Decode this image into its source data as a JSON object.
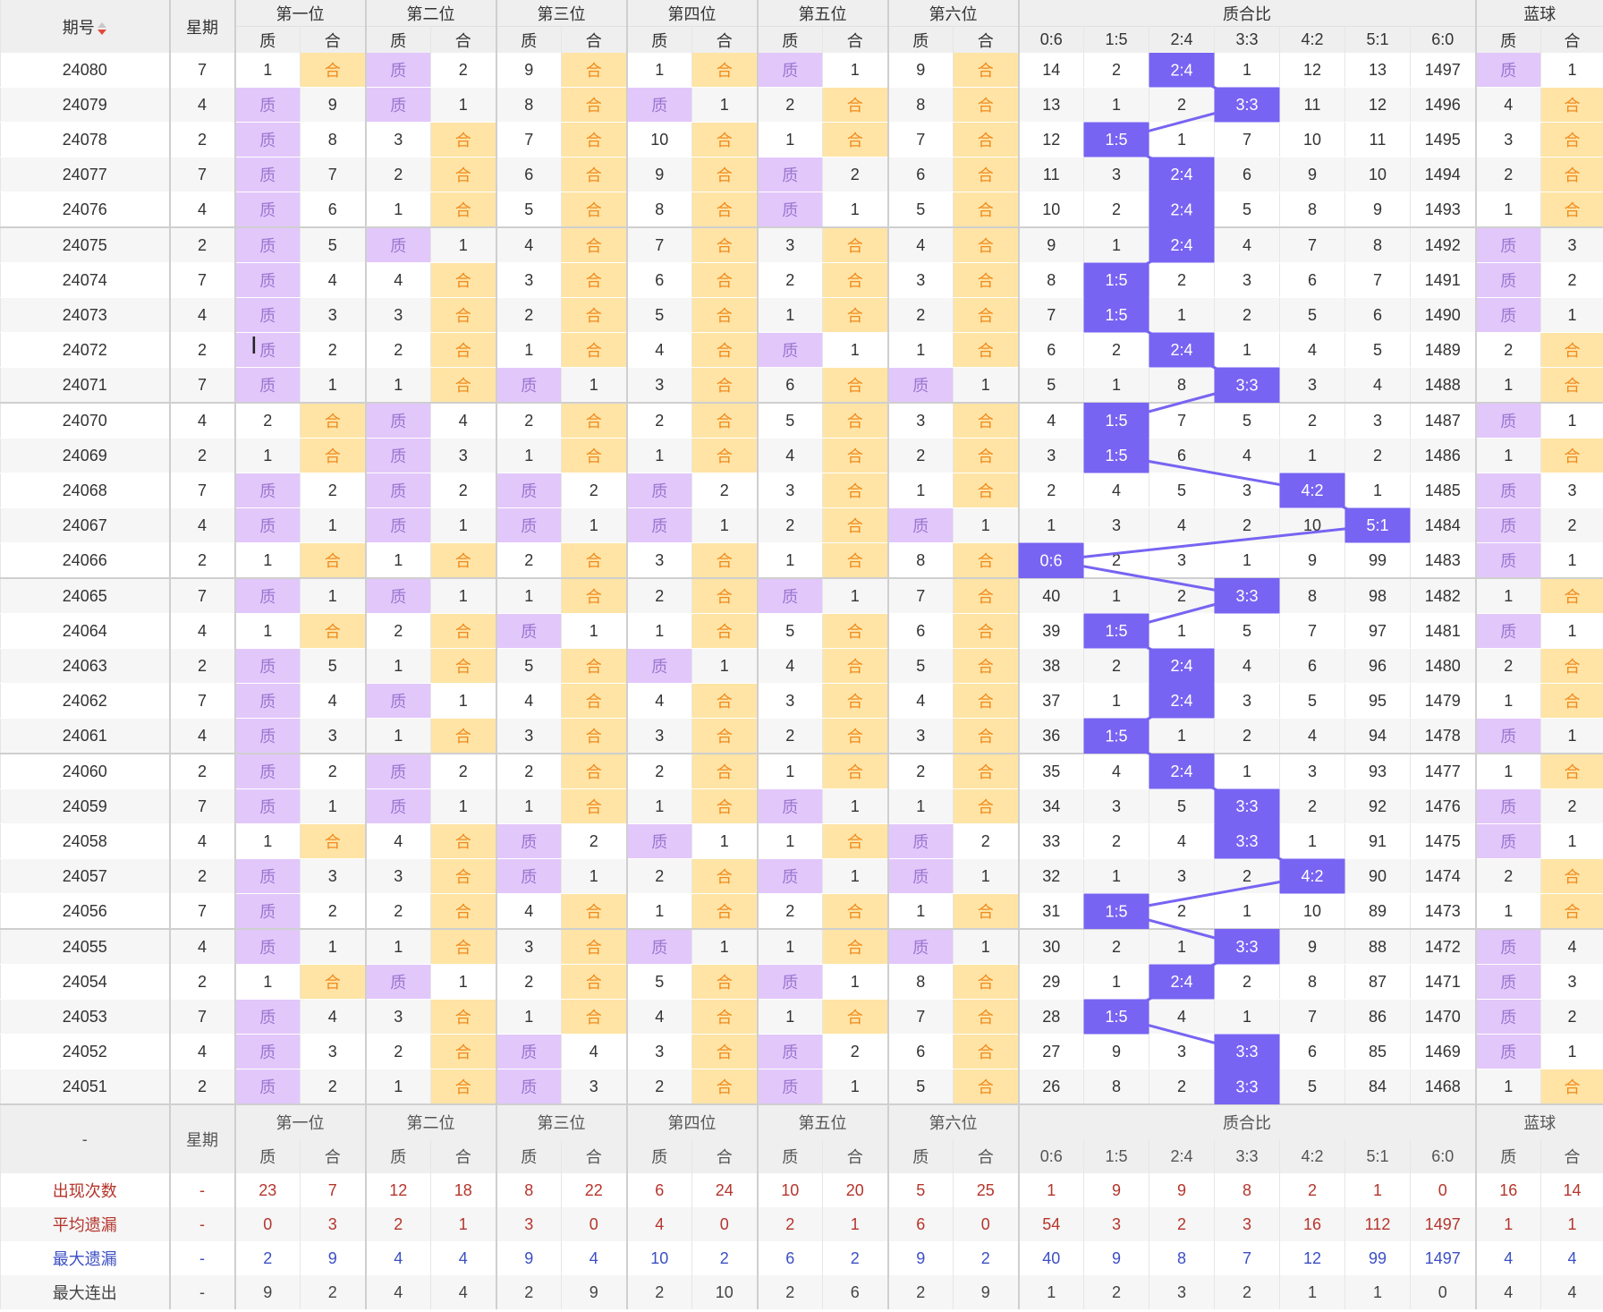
{
  "header": {
    "period_label": "期号",
    "week_label": "星期",
    "groups": [
      "第一位",
      "第二位",
      "第三位",
      "第四位",
      "第五位",
      "第六位",
      "质合比",
      "蓝球"
    ],
    "zhi": "质",
    "he": "合",
    "ratios": [
      "0:6",
      "1:5",
      "2:4",
      "3:3",
      "4:2",
      "5:1",
      "6:0"
    ]
  },
  "rows": [
    {
      "p": "24080",
      "w": "7",
      "pos": [
        [
          "1",
          "合"
        ],
        [
          "质",
          "2"
        ],
        [
          "9",
          "合"
        ],
        [
          "1",
          "合"
        ],
        [
          "质",
          "1"
        ],
        [
          "9",
          "合"
        ]
      ],
      "ratio": [
        "14",
        "2",
        "2:4",
        "1",
        "12",
        "13",
        "1497"
      ],
      "blue": [
        "质",
        "1"
      ]
    },
    {
      "p": "24079",
      "w": "4",
      "pos": [
        [
          "质",
          "9"
        ],
        [
          "质",
          "1"
        ],
        [
          "8",
          "合"
        ],
        [
          "质",
          "1"
        ],
        [
          "2",
          "合"
        ],
        [
          "8",
          "合"
        ]
      ],
      "ratio": [
        "13",
        "1",
        "2",
        "3:3",
        "11",
        "12",
        "1496"
      ],
      "blue": [
        "4",
        "合"
      ]
    },
    {
      "p": "24078",
      "w": "2",
      "pos": [
        [
          "质",
          "8"
        ],
        [
          "3",
          "合"
        ],
        [
          "7",
          "合"
        ],
        [
          "10",
          "合"
        ],
        [
          "1",
          "合"
        ],
        [
          "7",
          "合"
        ]
      ],
      "ratio": [
        "12",
        "1:5",
        "1",
        "7",
        "10",
        "11",
        "1495"
      ],
      "blue": [
        "3",
        "合"
      ]
    },
    {
      "p": "24077",
      "w": "7",
      "pos": [
        [
          "质",
          "7"
        ],
        [
          "2",
          "合"
        ],
        [
          "6",
          "合"
        ],
        [
          "9",
          "合"
        ],
        [
          "质",
          "2"
        ],
        [
          "6",
          "合"
        ]
      ],
      "ratio": [
        "11",
        "3",
        "2:4",
        "6",
        "9",
        "10",
        "1494"
      ],
      "blue": [
        "2",
        "合"
      ]
    },
    {
      "p": "24076",
      "w": "4",
      "pos": [
        [
          "质",
          "6"
        ],
        [
          "1",
          "合"
        ],
        [
          "5",
          "合"
        ],
        [
          "8",
          "合"
        ],
        [
          "质",
          "1"
        ],
        [
          "5",
          "合"
        ]
      ],
      "ratio": [
        "10",
        "2",
        "2:4",
        "5",
        "8",
        "9",
        "1493"
      ],
      "blue": [
        "1",
        "合"
      ]
    },
    {
      "p": "24075",
      "w": "2",
      "pos": [
        [
          "质",
          "5"
        ],
        [
          "质",
          "1"
        ],
        [
          "4",
          "合"
        ],
        [
          "7",
          "合"
        ],
        [
          "3",
          "合"
        ],
        [
          "4",
          "合"
        ]
      ],
      "ratio": [
        "9",
        "1",
        "2:4",
        "4",
        "7",
        "8",
        "1492"
      ],
      "blue": [
        "质",
        "3"
      ]
    },
    {
      "p": "24074",
      "w": "7",
      "pos": [
        [
          "质",
          "4"
        ],
        [
          "4",
          "合"
        ],
        [
          "3",
          "合"
        ],
        [
          "6",
          "合"
        ],
        [
          "2",
          "合"
        ],
        [
          "3",
          "合"
        ]
      ],
      "ratio": [
        "8",
        "1:5",
        "2",
        "3",
        "6",
        "7",
        "1491"
      ],
      "blue": [
        "质",
        "2"
      ]
    },
    {
      "p": "24073",
      "w": "4",
      "pos": [
        [
          "质",
          "3"
        ],
        [
          "3",
          "合"
        ],
        [
          "2",
          "合"
        ],
        [
          "5",
          "合"
        ],
        [
          "1",
          "合"
        ],
        [
          "2",
          "合"
        ]
      ],
      "ratio": [
        "7",
        "1:5",
        "1",
        "2",
        "5",
        "6",
        "1490"
      ],
      "blue": [
        "质",
        "1"
      ]
    },
    {
      "p": "24072",
      "w": "2",
      "pos": [
        [
          "质",
          "2"
        ],
        [
          "2",
          "合"
        ],
        [
          "1",
          "合"
        ],
        [
          "4",
          "合"
        ],
        [
          "质",
          "1"
        ],
        [
          "1",
          "合"
        ]
      ],
      "ratio": [
        "6",
        "2",
        "2:4",
        "1",
        "4",
        "5",
        "1489"
      ],
      "blue": [
        "2",
        "合"
      ]
    },
    {
      "p": "24071",
      "w": "7",
      "pos": [
        [
          "质",
          "1"
        ],
        [
          "1",
          "合"
        ],
        [
          "质",
          "1"
        ],
        [
          "3",
          "合"
        ],
        [
          "6",
          "合"
        ],
        [
          "质",
          "1"
        ]
      ],
      "ratio": [
        "5",
        "1",
        "8",
        "3:3",
        "3",
        "4",
        "1488"
      ],
      "blue": [
        "1",
        "合"
      ]
    },
    {
      "p": "24070",
      "w": "4",
      "pos": [
        [
          "2",
          "合"
        ],
        [
          "质",
          "4"
        ],
        [
          "2",
          "合"
        ],
        [
          "2",
          "合"
        ],
        [
          "5",
          "合"
        ],
        [
          "3",
          "合"
        ]
      ],
      "ratio": [
        "4",
        "1:5",
        "7",
        "5",
        "2",
        "3",
        "1487"
      ],
      "blue": [
        "质",
        "1"
      ]
    },
    {
      "p": "24069",
      "w": "2",
      "pos": [
        [
          "1",
          "合"
        ],
        [
          "质",
          "3"
        ],
        [
          "1",
          "合"
        ],
        [
          "1",
          "合"
        ],
        [
          "4",
          "合"
        ],
        [
          "2",
          "合"
        ]
      ],
      "ratio": [
        "3",
        "1:5",
        "6",
        "4",
        "1",
        "2",
        "1486"
      ],
      "blue": [
        "1",
        "合"
      ]
    },
    {
      "p": "24068",
      "w": "7",
      "pos": [
        [
          "质",
          "2"
        ],
        [
          "质",
          "2"
        ],
        [
          "质",
          "2"
        ],
        [
          "质",
          "2"
        ],
        [
          "3",
          "合"
        ],
        [
          "1",
          "合"
        ]
      ],
      "ratio": [
        "2",
        "4",
        "5",
        "3",
        "4:2",
        "1",
        "1485"
      ],
      "blue": [
        "质",
        "3"
      ]
    },
    {
      "p": "24067",
      "w": "4",
      "pos": [
        [
          "质",
          "1"
        ],
        [
          "质",
          "1"
        ],
        [
          "质",
          "1"
        ],
        [
          "质",
          "1"
        ],
        [
          "2",
          "合"
        ],
        [
          "质",
          "1"
        ]
      ],
      "ratio": [
        "1",
        "3",
        "4",
        "2",
        "10",
        "5:1",
        "1484"
      ],
      "blue": [
        "质",
        "2"
      ]
    },
    {
      "p": "24066",
      "w": "2",
      "pos": [
        [
          "1",
          "合"
        ],
        [
          "1",
          "合"
        ],
        [
          "2",
          "合"
        ],
        [
          "3",
          "合"
        ],
        [
          "1",
          "合"
        ],
        [
          "8",
          "合"
        ]
      ],
      "ratio": [
        "0:6",
        "2",
        "3",
        "1",
        "9",
        "99",
        "1483"
      ],
      "blue": [
        "质",
        "1"
      ]
    },
    {
      "p": "24065",
      "w": "7",
      "pos": [
        [
          "质",
          "1"
        ],
        [
          "质",
          "1"
        ],
        [
          "1",
          "合"
        ],
        [
          "2",
          "合"
        ],
        [
          "质",
          "1"
        ],
        [
          "7",
          "合"
        ]
      ],
      "ratio": [
        "40",
        "1",
        "2",
        "3:3",
        "8",
        "98",
        "1482"
      ],
      "blue": [
        "1",
        "合"
      ]
    },
    {
      "p": "24064",
      "w": "4",
      "pos": [
        [
          "1",
          "合"
        ],
        [
          "2",
          "合"
        ],
        [
          "质",
          "1"
        ],
        [
          "1",
          "合"
        ],
        [
          "5",
          "合"
        ],
        [
          "6",
          "合"
        ]
      ],
      "ratio": [
        "39",
        "1:5",
        "1",
        "5",
        "7",
        "97",
        "1481"
      ],
      "blue": [
        "质",
        "1"
      ]
    },
    {
      "p": "24063",
      "w": "2",
      "pos": [
        [
          "质",
          "5"
        ],
        [
          "1",
          "合"
        ],
        [
          "5",
          "合"
        ],
        [
          "质",
          "1"
        ],
        [
          "4",
          "合"
        ],
        [
          "5",
          "合"
        ]
      ],
      "ratio": [
        "38",
        "2",
        "2:4",
        "4",
        "6",
        "96",
        "1480"
      ],
      "blue": [
        "2",
        "合"
      ]
    },
    {
      "p": "24062",
      "w": "7",
      "pos": [
        [
          "质",
          "4"
        ],
        [
          "质",
          "1"
        ],
        [
          "4",
          "合"
        ],
        [
          "4",
          "合"
        ],
        [
          "3",
          "合"
        ],
        [
          "4",
          "合"
        ]
      ],
      "ratio": [
        "37",
        "1",
        "2:4",
        "3",
        "5",
        "95",
        "1479"
      ],
      "blue": [
        "1",
        "合"
      ]
    },
    {
      "p": "24061",
      "w": "4",
      "pos": [
        [
          "质",
          "3"
        ],
        [
          "1",
          "合"
        ],
        [
          "3",
          "合"
        ],
        [
          "3",
          "合"
        ],
        [
          "2",
          "合"
        ],
        [
          "3",
          "合"
        ]
      ],
      "ratio": [
        "36",
        "1:5",
        "1",
        "2",
        "4",
        "94",
        "1478"
      ],
      "blue": [
        "质",
        "1"
      ]
    },
    {
      "p": "24060",
      "w": "2",
      "pos": [
        [
          "质",
          "2"
        ],
        [
          "质",
          "2"
        ],
        [
          "2",
          "合"
        ],
        [
          "2",
          "合"
        ],
        [
          "1",
          "合"
        ],
        [
          "2",
          "合"
        ]
      ],
      "ratio": [
        "35",
        "4",
        "2:4",
        "1",
        "3",
        "93",
        "1477"
      ],
      "blue": [
        "1",
        "合"
      ]
    },
    {
      "p": "24059",
      "w": "7",
      "pos": [
        [
          "质",
          "1"
        ],
        [
          "质",
          "1"
        ],
        [
          "1",
          "合"
        ],
        [
          "1",
          "合"
        ],
        [
          "质",
          "1"
        ],
        [
          "1",
          "合"
        ]
      ],
      "ratio": [
        "34",
        "3",
        "5",
        "3:3",
        "2",
        "92",
        "1476"
      ],
      "blue": [
        "质",
        "2"
      ]
    },
    {
      "p": "24058",
      "w": "4",
      "pos": [
        [
          "1",
          "合"
        ],
        [
          "4",
          "合"
        ],
        [
          "质",
          "2"
        ],
        [
          "质",
          "1"
        ],
        [
          "1",
          "合"
        ],
        [
          "质",
          "2"
        ]
      ],
      "ratio": [
        "33",
        "2",
        "4",
        "3:3",
        "1",
        "91",
        "1475"
      ],
      "blue": [
        "质",
        "1"
      ]
    },
    {
      "p": "24057",
      "w": "2",
      "pos": [
        [
          "质",
          "3"
        ],
        [
          "3",
          "合"
        ],
        [
          "质",
          "1"
        ],
        [
          "2",
          "合"
        ],
        [
          "质",
          "1"
        ],
        [
          "质",
          "1"
        ]
      ],
      "ratio": [
        "32",
        "1",
        "3",
        "2",
        "4:2",
        "90",
        "1474"
      ],
      "blue": [
        "2",
        "合"
      ]
    },
    {
      "p": "24056",
      "w": "7",
      "pos": [
        [
          "质",
          "2"
        ],
        [
          "2",
          "合"
        ],
        [
          "4",
          "合"
        ],
        [
          "1",
          "合"
        ],
        [
          "2",
          "合"
        ],
        [
          "1",
          "合"
        ]
      ],
      "ratio": [
        "31",
        "1:5",
        "2",
        "1",
        "10",
        "89",
        "1473"
      ],
      "blue": [
        "1",
        "合"
      ]
    },
    {
      "p": "24055",
      "w": "4",
      "pos": [
        [
          "质",
          "1"
        ],
        [
          "1",
          "合"
        ],
        [
          "3",
          "合"
        ],
        [
          "质",
          "1"
        ],
        [
          "1",
          "合"
        ],
        [
          "质",
          "1"
        ]
      ],
      "ratio": [
        "30",
        "2",
        "1",
        "3:3",
        "9",
        "88",
        "1472"
      ],
      "blue": [
        "质",
        "4"
      ]
    },
    {
      "p": "24054",
      "w": "2",
      "pos": [
        [
          "1",
          "合"
        ],
        [
          "质",
          "1"
        ],
        [
          "2",
          "合"
        ],
        [
          "5",
          "合"
        ],
        [
          "质",
          "1"
        ],
        [
          "8",
          "合"
        ]
      ],
      "ratio": [
        "29",
        "1",
        "2:4",
        "2",
        "8",
        "87",
        "1471"
      ],
      "blue": [
        "质",
        "3"
      ]
    },
    {
      "p": "24053",
      "w": "7",
      "pos": [
        [
          "质",
          "4"
        ],
        [
          "3",
          "合"
        ],
        [
          "1",
          "合"
        ],
        [
          "4",
          "合"
        ],
        [
          "1",
          "合"
        ],
        [
          "7",
          "合"
        ]
      ],
      "ratio": [
        "28",
        "1:5",
        "4",
        "1",
        "7",
        "86",
        "1470"
      ],
      "blue": [
        "质",
        "2"
      ]
    },
    {
      "p": "24052",
      "w": "4",
      "pos": [
        [
          "质",
          "3"
        ],
        [
          "2",
          "合"
        ],
        [
          "质",
          "4"
        ],
        [
          "3",
          "合"
        ],
        [
          "质",
          "2"
        ],
        [
          "6",
          "合"
        ]
      ],
      "ratio": [
        "27",
        "9",
        "3",
        "3:3",
        "6",
        "85",
        "1469"
      ],
      "blue": [
        "质",
        "1"
      ]
    },
    {
      "p": "24051",
      "w": "2",
      "pos": [
        [
          "质",
          "2"
        ],
        [
          "1",
          "合"
        ],
        [
          "质",
          "3"
        ],
        [
          "2",
          "合"
        ],
        [
          "质",
          "1"
        ],
        [
          "5",
          "合"
        ]
      ],
      "ratio": [
        "26",
        "8",
        "2",
        "3:3",
        "5",
        "84",
        "1468"
      ],
      "blue": [
        "1",
        "合"
      ]
    }
  ],
  "footer": {
    "dash": "-",
    "week_label": "星期",
    "stats": [
      {
        "label": "出现次数",
        "color": "#b5352c",
        "vals": [
          "23",
          "7",
          "12",
          "18",
          "8",
          "22",
          "6",
          "24",
          "10",
          "20",
          "5",
          "25",
          "1",
          "9",
          "9",
          "8",
          "2",
          "1",
          "0",
          "16",
          "14"
        ]
      },
      {
        "label": "平均遗漏",
        "color": "#b5352c",
        "vals": [
          "0",
          "3",
          "2",
          "1",
          "3",
          "0",
          "4",
          "0",
          "2",
          "1",
          "6",
          "0",
          "54",
          "3",
          "2",
          "3",
          "16",
          "112",
          "1497",
          "1",
          "1"
        ]
      },
      {
        "label": "最大遗漏",
        "color": "#3c4fc4",
        "vals": [
          "2",
          "9",
          "4",
          "4",
          "9",
          "4",
          "10",
          "2",
          "6",
          "2",
          "9",
          "2",
          "40",
          "9",
          "8",
          "7",
          "12",
          "99",
          "1497",
          "4",
          "4"
        ]
      },
      {
        "label": "最大连出",
        "color": "#444444",
        "vals": [
          "9",
          "2",
          "4",
          "4",
          "2",
          "9",
          "2",
          "10",
          "2",
          "6",
          "2",
          "9",
          "1",
          "2",
          "3",
          "2",
          "1",
          "1",
          "0",
          "4",
          "4"
        ]
      }
    ]
  },
  "colors": {
    "zhi_bg": "#e2c7fb",
    "he_bg": "#ffe4a5",
    "ratio_bg": "#7764f2",
    "line": "#7764f2"
  }
}
